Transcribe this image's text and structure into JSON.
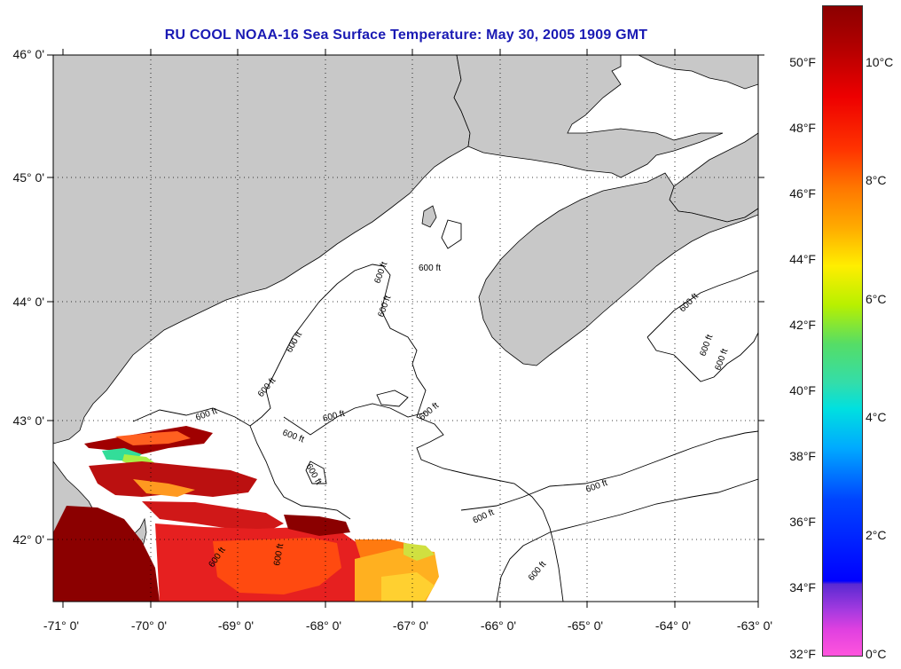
{
  "title": "RU COOL  NOAA-16  Sea Surface Temperature:  May 30, 2005 1909 GMT",
  "latitude_labels": [
    "46° 0'",
    "45° 0'",
    "44° 0'",
    "43° 0'",
    "42° 0'"
  ],
  "longitude_labels": [
    "-71° 0'",
    "-70° 0'",
    "-69° 0'",
    "-68° 0'",
    "-67° 0'",
    "-66° 0'",
    "-65° 0'",
    "-64° 0'",
    "-63° 0'"
  ],
  "contour_label": "600 ft",
  "colorbar": {
    "fahrenheit_labels": [
      "50°F",
      "48°F",
      "46°F",
      "44°F",
      "42°F",
      "40°F",
      "38°F",
      "36°F",
      "34°F",
      "32°F"
    ],
    "celsius_labels": [
      "10°C",
      "8°C",
      "6°C",
      "4°C",
      "2°C",
      "0°C"
    ]
  },
  "colors": {
    "title": "#1a1ab4",
    "land": "#c8c8c8",
    "ocean_no_data": "#ffffff",
    "contour": "#000000"
  }
}
